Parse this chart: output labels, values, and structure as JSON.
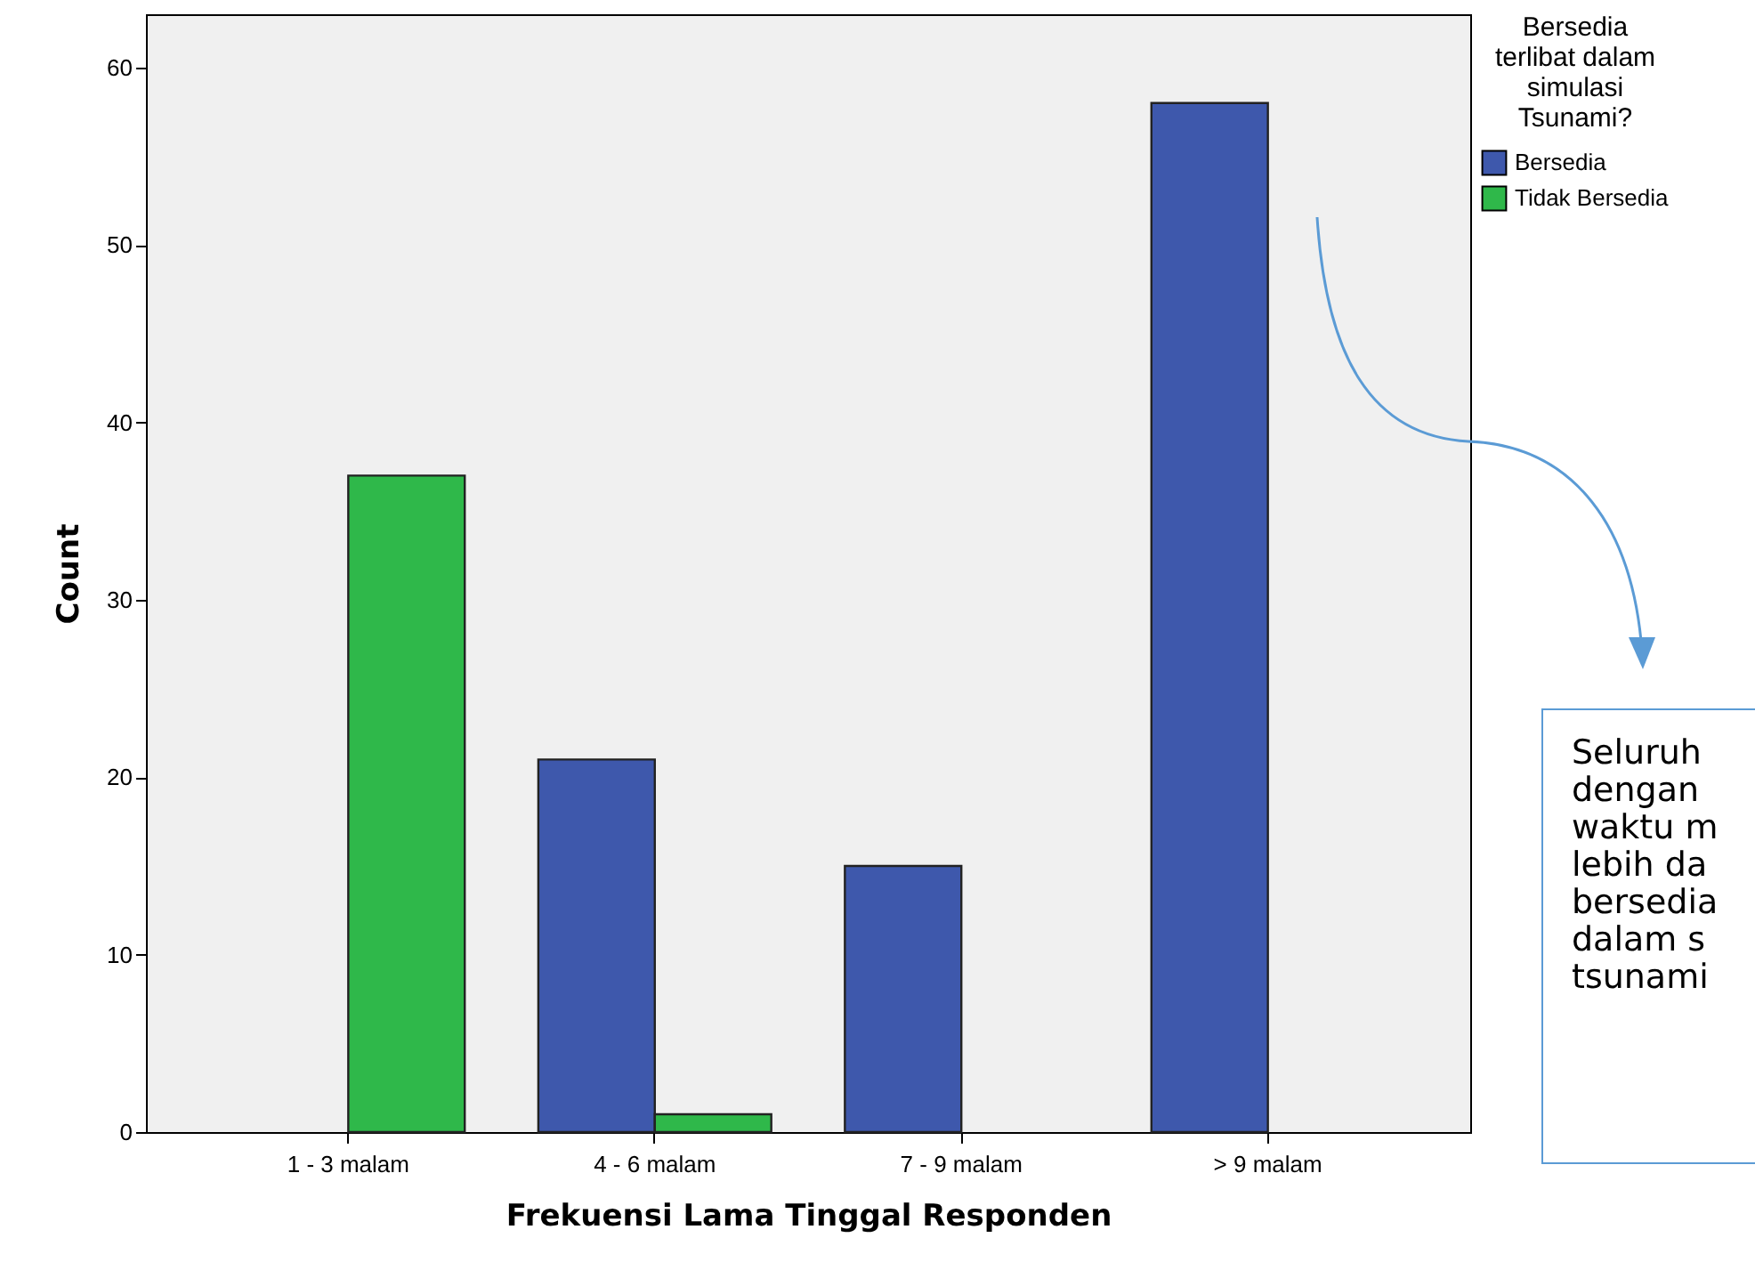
{
  "chart_data": {
    "type": "bar",
    "xlabel": "Frekuensi Lama Tinggal Responden",
    "ylabel": "Count",
    "legend_title": "Bersedia\nterlibat dalam\nsimulasi\nTsunami?",
    "categories": [
      "1 - 3 malam",
      "4 - 6 malam",
      "7 - 9 malam",
      "> 9 malam"
    ],
    "series": [
      {
        "name": "Bersedia",
        "color": "#3e58ac",
        "values": [
          null,
          21,
          15,
          58
        ]
      },
      {
        "name": "Tidak Bersedia",
        "color": "#2fb84a",
        "values": [
          37,
          1,
          null,
          null
        ]
      }
    ],
    "ylim": [
      0,
      63
    ],
    "yticks": [
      0,
      10,
      20,
      30,
      40,
      50,
      60
    ],
    "legend": "top right",
    "grid": false,
    "annotations": [
      "Seluruh\ndengan\nwaktu m\nlebih da\nbersedia\ndalam s\ntsunami"
    ]
  }
}
